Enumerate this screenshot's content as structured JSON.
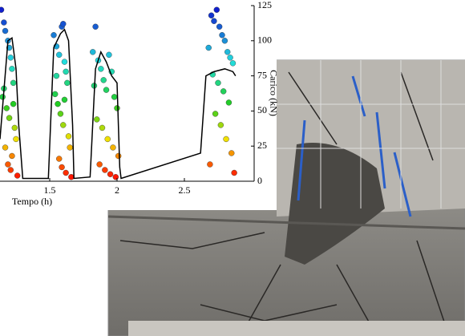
{
  "chart_data": {
    "type": "scatter",
    "x_label": "Tempo (h)",
    "y_label": "Carico (kN)",
    "xlim": [
      1.131,
      3.018
    ],
    "ylim": [
      0,
      125
    ],
    "xticks": [
      1.5,
      2,
      2.5
    ],
    "yticks": [
      0,
      25,
      50,
      75,
      100,
      125
    ],
    "y_axis_side": "right",
    "colormap": [
      {
        "value": 0,
        "color": "#ff0000"
      },
      {
        "value": 30,
        "color": "#f0e000"
      },
      {
        "value": 55,
        "color": "#22cc22"
      },
      {
        "value": 85,
        "color": "#22dddd"
      },
      {
        "value": 125,
        "color": "#1010cc"
      }
    ],
    "scatter": {
      "x": [
        1.14,
        1.16,
        1.17,
        1.19,
        1.2,
        1.21,
        1.22,
        1.23,
        1.15,
        1.18,
        1.2,
        1.24,
        1.25,
        1.17,
        1.22,
        1.19,
        1.21,
        1.26,
        1.16,
        1.23,
        1.53,
        1.55,
        1.57,
        1.59,
        1.6,
        1.61,
        1.62,
        1.63,
        1.54,
        1.56,
        1.58,
        1.6,
        1.64,
        1.65,
        1.57,
        1.59,
        1.62,
        1.55,
        1.61,
        1.66,
        1.82,
        1.84,
        1.86,
        1.88,
        1.9,
        1.92,
        1.94,
        1.96,
        1.98,
        2.0,
        1.85,
        1.89,
        1.93,
        1.97,
        2.01,
        1.87,
        1.91,
        1.95,
        1.83,
        1.99,
        2.68,
        2.7,
        2.72,
        2.74,
        2.76,
        2.78,
        2.8,
        2.82,
        2.84,
        2.86,
        2.71,
        2.75,
        2.79,
        2.83,
        2.73,
        2.77,
        2.81,
        2.85,
        2.69,
        2.87
      ],
      "y": [
        122,
        113,
        107,
        100,
        95,
        88,
        80,
        70,
        60,
        52,
        45,
        38,
        30,
        24,
        18,
        12,
        8,
        4,
        66,
        55,
        104,
        96,
        90,
        110,
        112,
        85,
        78,
        70,
        62,
        55,
        48,
        40,
        32,
        24,
        16,
        10,
        6,
        75,
        58,
        3,
        92,
        110,
        86,
        80,
        72,
        65,
        90,
        78,
        60,
        52,
        44,
        38,
        30,
        24,
        18,
        12,
        8,
        5,
        68,
        3,
        95,
        118,
        114,
        122,
        110,
        104,
        100,
        92,
        88,
        84,
        76,
        70,
        64,
        56,
        48,
        40,
        30,
        20,
        12,
        6
      ]
    },
    "line": {
      "color": "#000000",
      "x": [
        1.131,
        1.19,
        1.22,
        1.25,
        1.27,
        1.3,
        1.45,
        1.49,
        1.53,
        1.58,
        1.61,
        1.64,
        1.67,
        1.68,
        1.8,
        1.84,
        1.88,
        1.92,
        1.96,
        2.0,
        2.02,
        2.03,
        2.62,
        2.66,
        2.72,
        2.8,
        2.86,
        2.88
      ],
      "y": [
        30,
        100,
        102,
        80,
        40,
        2,
        2,
        2,
        95,
        105,
        108,
        100,
        40,
        2,
        3,
        80,
        92,
        85,
        75,
        70,
        10,
        2,
        20,
        75,
        78,
        80,
        78,
        75
      ]
    }
  }
}
